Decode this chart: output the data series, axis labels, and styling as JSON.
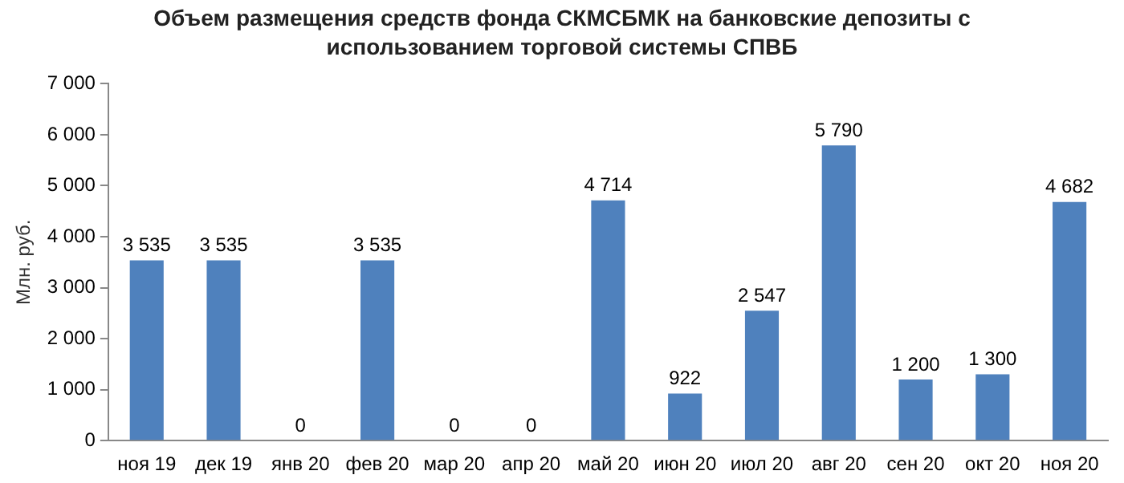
{
  "chart_data": {
    "type": "bar",
    "title": "Объем размещения средств фонда СКМСБМК на банковские депозиты с использованием торговой системы СПВБ",
    "ylabel": "Млн. руб.",
    "categories": [
      "ноя 19",
      "дек 19",
      "янв 20",
      "фев 20",
      "мар 20",
      "апр 20",
      "май 20",
      "июн 20",
      "июл 20",
      "авг 20",
      "сен 20",
      "окт 20",
      "ноя 20"
    ],
    "values": [
      3535,
      3535,
      0,
      3535,
      0,
      0,
      4714,
      922,
      2547,
      5790,
      1200,
      1300,
      4682
    ],
    "value_labels": [
      "3 535",
      "3 535",
      "0",
      "3 535",
      "0",
      "0",
      "4 714",
      "922",
      "2 547",
      "5 790",
      "1 200",
      "1 300",
      "4 682"
    ],
    "color": "#4f81bd",
    "ylim": [
      0,
      7000
    ],
    "yticks": [
      0,
      {
        "value": 1000,
        "label": "1 000"
      },
      {
        "value": 2000,
        "label": "2 000"
      },
      {
        "value": 3000,
        "label": "3 000"
      },
      {
        "value": 4000,
        "label": "4 000"
      },
      {
        "value": 5000,
        "label": "5 000"
      },
      {
        "value": 6000,
        "label": "6 000"
      },
      {
        "value": 7000,
        "label": "7 000"
      }
    ],
    "grid": false,
    "legend": false
  }
}
